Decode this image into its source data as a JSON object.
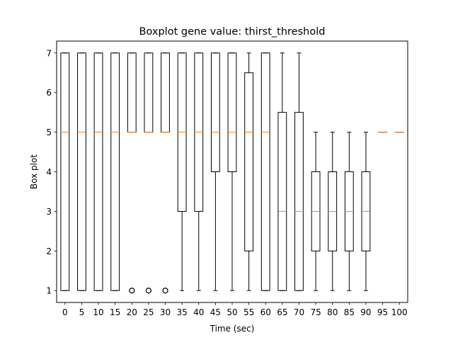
{
  "chart_data": {
    "type": "boxplot",
    "title": "Boxplot gene value: thirst_threshold",
    "xlabel": "Time (sec)",
    "ylabel": "Box plot",
    "ylim": [
      0.7,
      7.3
    ],
    "yticks": [
      1,
      2,
      3,
      4,
      5,
      6,
      7
    ],
    "grid": false,
    "colors": {
      "box": "#000000",
      "median": "#ff7f0e",
      "flier": "#000000"
    },
    "categories": [
      "0",
      "5",
      "10",
      "15",
      "20",
      "25",
      "30",
      "35",
      "40",
      "45",
      "50",
      "55",
      "60",
      "65",
      "70",
      "75",
      "80",
      "85",
      "90",
      "95",
      "100"
    ],
    "boxes": [
      {
        "label": "0",
        "whislo": 1,
        "q1": 1,
        "med": 5,
        "q3": 7,
        "whishi": 7,
        "fliers": []
      },
      {
        "label": "5",
        "whislo": 1,
        "q1": 1,
        "med": 5,
        "q3": 7,
        "whishi": 7,
        "fliers": []
      },
      {
        "label": "10",
        "whislo": 1,
        "q1": 1,
        "med": 5,
        "q3": 7,
        "whishi": 7,
        "fliers": []
      },
      {
        "label": "15",
        "whislo": 1,
        "q1": 1,
        "med": 5,
        "q3": 7,
        "whishi": 7,
        "fliers": []
      },
      {
        "label": "20",
        "whislo": 5,
        "q1": 5,
        "med": 5,
        "q3": 7,
        "whishi": 7,
        "fliers": [
          1,
          1,
          1
        ]
      },
      {
        "label": "25",
        "whislo": 5,
        "q1": 5,
        "med": 5,
        "q3": 7,
        "whishi": 7,
        "fliers": [
          1,
          1,
          1
        ]
      },
      {
        "label": "30",
        "whislo": 5,
        "q1": 5,
        "med": 5,
        "q3": 7,
        "whishi": 7,
        "fliers": [
          1,
          1,
          1
        ]
      },
      {
        "label": "35",
        "whislo": 1,
        "q1": 3,
        "med": 5,
        "q3": 7,
        "whishi": 7,
        "fliers": []
      },
      {
        "label": "40",
        "whislo": 1,
        "q1": 3,
        "med": 5,
        "q3": 7,
        "whishi": 7,
        "fliers": []
      },
      {
        "label": "45",
        "whislo": 1,
        "q1": 4,
        "med": 5,
        "q3": 7,
        "whishi": 7,
        "fliers": []
      },
      {
        "label": "50",
        "whislo": 1,
        "q1": 4,
        "med": 5,
        "q3": 7,
        "whishi": 7,
        "fliers": []
      },
      {
        "label": "55",
        "whislo": 1,
        "q1": 2,
        "med": 5,
        "q3": 6.5,
        "whishi": 7,
        "fliers": []
      },
      {
        "label": "60",
        "whislo": 1,
        "q1": 1,
        "med": 5,
        "q3": 7,
        "whishi": 7,
        "fliers": []
      },
      {
        "label": "65",
        "whislo": 1,
        "q1": 1,
        "med": 3,
        "q3": 5.5,
        "whishi": 7,
        "fliers": []
      },
      {
        "label": "70",
        "whislo": 1,
        "q1": 1,
        "med": 3,
        "q3": 5.5,
        "whishi": 7,
        "fliers": []
      },
      {
        "label": "75",
        "whislo": 1,
        "q1": 2,
        "med": 3,
        "q3": 4,
        "whishi": 5,
        "fliers": []
      },
      {
        "label": "80",
        "whislo": 1,
        "q1": 2,
        "med": 3,
        "q3": 4,
        "whishi": 5,
        "fliers": []
      },
      {
        "label": "85",
        "whislo": 1,
        "q1": 2,
        "med": 3,
        "q3": 4,
        "whishi": 5,
        "fliers": []
      },
      {
        "label": "90",
        "whislo": 1,
        "q1": 2,
        "med": 3,
        "q3": 4,
        "whishi": 5,
        "fliers": []
      },
      {
        "label": "95",
        "whislo": 5,
        "q1": 5,
        "med": 5,
        "q3": 5,
        "whishi": 5,
        "fliers": []
      },
      {
        "label": "100",
        "whislo": 5,
        "q1": 5,
        "med": 5,
        "q3": 5,
        "whishi": 5,
        "fliers": []
      }
    ]
  }
}
